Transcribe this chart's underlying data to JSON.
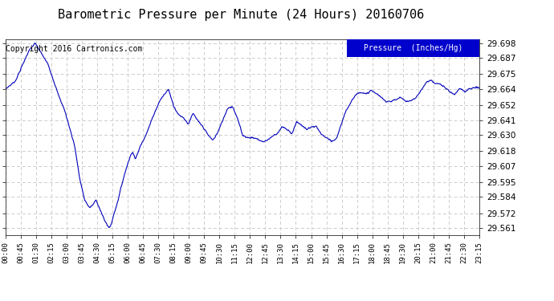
{
  "title": "Barometric Pressure per Minute (24 Hours) 20160706",
  "copyright": "Copyright 2016 Cartronics.com",
  "legend_label": "Pressure  (Inches/Hg)",
  "legend_bg": "#0000cc",
  "legend_fg": "#ffffff",
  "line_color": "#0000bb",
  "line_width": 0.8,
  "bg_color": "#ffffff",
  "grid_color": "#cccccc",
  "grid_style": "--",
  "yticks": [
    29.561,
    29.572,
    29.584,
    29.595,
    29.607,
    29.618,
    29.63,
    29.641,
    29.652,
    29.664,
    29.675,
    29.687,
    29.698
  ],
  "ylim": [
    29.556,
    29.701
  ],
  "xtick_labels": [
    "00:00",
    "00:45",
    "01:30",
    "02:15",
    "03:00",
    "03:45",
    "04:30",
    "05:15",
    "06:00",
    "06:45",
    "07:30",
    "08:15",
    "09:00",
    "09:45",
    "10:30",
    "11:15",
    "12:00",
    "12:45",
    "13:30",
    "14:15",
    "15:00",
    "15:45",
    "16:30",
    "17:15",
    "18:00",
    "18:45",
    "19:30",
    "20:15",
    "21:00",
    "21:45",
    "22:30",
    "23:15"
  ],
  "title_color": "#000000",
  "title_fontsize": 11,
  "copyright_fontsize": 7,
  "copyright_color": "#000000",
  "ctrl_t": [
    0,
    30,
    70,
    90,
    110,
    130,
    160,
    180,
    210,
    225,
    240,
    255,
    265,
    275,
    285,
    300,
    315,
    320,
    330,
    340,
    355,
    370,
    385,
    395,
    410,
    430,
    450,
    470,
    495,
    510,
    525,
    540,
    555,
    570,
    585,
    600,
    615,
    630,
    645,
    660,
    675,
    690,
    705,
    720,
    735,
    750,
    765,
    780,
    795,
    810,
    825,
    840,
    855,
    870,
    885,
    900,
    915,
    930,
    945,
    960,
    975,
    990,
    1005,
    1020,
    1035,
    1050,
    1065,
    1080,
    1095,
    1110,
    1125,
    1140,
    1155,
    1170,
    1185,
    1200,
    1215,
    1230,
    1245,
    1260,
    1275,
    1290,
    1305,
    1320,
    1335,
    1350,
    1365,
    1380,
    1395,
    1410,
    1425,
    1439
  ],
  "ctrl_p": [
    29.664,
    29.67,
    29.692,
    29.698,
    29.69,
    29.682,
    29.66,
    29.648,
    29.622,
    29.598,
    29.582,
    29.576,
    29.578,
    29.582,
    29.576,
    29.567,
    29.561,
    29.563,
    29.572,
    29.58,
    29.595,
    29.608,
    29.618,
    29.612,
    29.622,
    29.632,
    29.645,
    29.656,
    29.664,
    29.652,
    29.645,
    29.643,
    29.638,
    29.646,
    29.64,
    29.636,
    29.63,
    29.626,
    29.632,
    29.641,
    29.65,
    29.651,
    29.642,
    29.63,
    29.628,
    29.628,
    29.627,
    29.625,
    29.626,
    29.629,
    29.631,
    29.636,
    29.634,
    29.631,
    29.64,
    29.637,
    29.634,
    29.636,
    29.636,
    29.63,
    29.628,
    29.625,
    29.627,
    29.638,
    29.648,
    29.655,
    29.66,
    29.662,
    29.66,
    29.663,
    29.661,
    29.658,
    29.655,
    29.655,
    29.656,
    29.658,
    29.655,
    29.655,
    29.657,
    29.662,
    29.668,
    29.671,
    29.668,
    29.668,
    29.665,
    29.662,
    29.66,
    29.665,
    29.662,
    29.664,
    29.665,
    29.665
  ]
}
